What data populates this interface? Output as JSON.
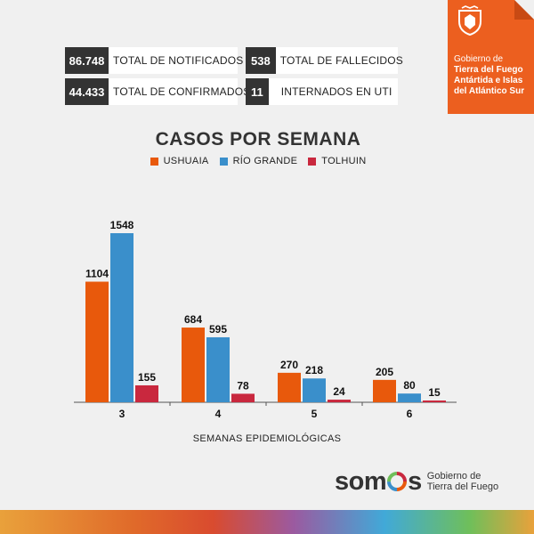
{
  "stats": [
    {
      "value": "86.748",
      "label": "TOTAL DE NOTIFICADOS"
    },
    {
      "value": "44.433",
      "label": "TOTAL DE CONFIRMADOS"
    },
    {
      "value": "538",
      "label": "TOTAL DE FALLECIDOS"
    },
    {
      "value": "11",
      "label": "INTERNADOS EN UTI"
    }
  ],
  "government": {
    "line1": "Gobierno de",
    "line2": "Tierra del Fuego",
    "line3": "Antártida e Islas",
    "line4": "del Atlántico Sur",
    "accent": "#ec5f1f"
  },
  "brand": {
    "wordmark_start": "som",
    "wordmark_end": "s",
    "line1": "Gobierno de",
    "line2": "Tierra del Fuego"
  },
  "chart_data": {
    "type": "bar",
    "title": "CASOS POR SEMANA",
    "xlabel": "SEMANAS EPIDEMIOLÓGICAS",
    "ylabel": "",
    "categories": [
      "3",
      "4",
      "5",
      "6"
    ],
    "series": [
      {
        "name": "USHUAIA",
        "color": "#e8590c",
        "values": [
          1104,
          684,
          270,
          205
        ]
      },
      {
        "name": "RÍO GRANDE",
        "color": "#3a8fcb",
        "values": [
          1548,
          595,
          218,
          80
        ]
      },
      {
        "name": "TOLHUIN",
        "color": "#c9283e",
        "values": [
          155,
          78,
          24,
          15
        ]
      }
    ],
    "ylim": [
      0,
      1548
    ],
    "grid": false,
    "legend": "top-center",
    "data_labels": true
  }
}
